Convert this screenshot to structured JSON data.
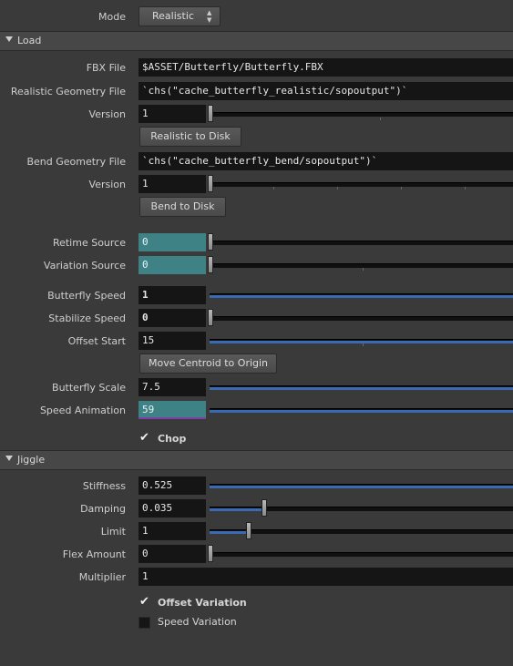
{
  "mode": {
    "label": "Mode",
    "value": "Realistic"
  },
  "sections": {
    "load": "Load",
    "jiggle": "Jiggle"
  },
  "load": {
    "fbx_file": {
      "label": "FBX File",
      "value": "$ASSET/Butterfly/Butterfly.FBX"
    },
    "realistic_geometry_file": {
      "label": "Realistic Geometry File",
      "value": "`chs(\"cache_butterfly_realistic/sopoutput\")`"
    },
    "version_realistic": {
      "label": "Version",
      "value": "1"
    },
    "realistic_to_disk": "Realistic to Disk",
    "bend_geometry_file": {
      "label": "Bend Geometry File",
      "value": "`chs(\"cache_butterfly_bend/sopoutput\")`"
    },
    "version_bend": {
      "label": "Version",
      "value": "1"
    },
    "bend_to_disk": "Bend to Disk",
    "retime_source": {
      "label": "Retime Source",
      "value": "0"
    },
    "variation_source": {
      "label": "Variation Source",
      "value": "0"
    },
    "butterfly_speed": {
      "label": "Butterfly Speed",
      "value": "1"
    },
    "stabilize_speed": {
      "label": "Stabilize Speed",
      "value": "0"
    },
    "offset_start": {
      "label": "Offset Start",
      "value": "15"
    },
    "move_centroid": "Move Centroid to Origin",
    "butterfly_scale": {
      "label": "Butterfly Scale",
      "value": "7.5"
    },
    "speed_animation": {
      "label": "Speed Animation",
      "value": "59"
    },
    "chop": {
      "label": "Chop",
      "checked": true
    }
  },
  "jiggle": {
    "stiffness": {
      "label": "Stiffness",
      "value": "0.525"
    },
    "damping": {
      "label": "Damping",
      "value": "0.035"
    },
    "limit": {
      "label": "Limit",
      "value": "1"
    },
    "flex_amount": {
      "label": "Flex Amount",
      "value": "0"
    },
    "multiplier": {
      "label": "Multiplier",
      "value": "1"
    },
    "offset_variation": {
      "label": "Offset Variation",
      "checked": true
    },
    "speed_variation": {
      "label": "Speed Variation",
      "checked": false
    }
  },
  "colors": {
    "teal_field": "#3f8286",
    "slider_fill": "#3b6ab4",
    "background": "#3a3a3a"
  },
  "icons": {
    "section_toggle": "triangle-down-icon",
    "checkmark": "checkmark-icon",
    "spinner": "up-down-arrows-icon"
  }
}
